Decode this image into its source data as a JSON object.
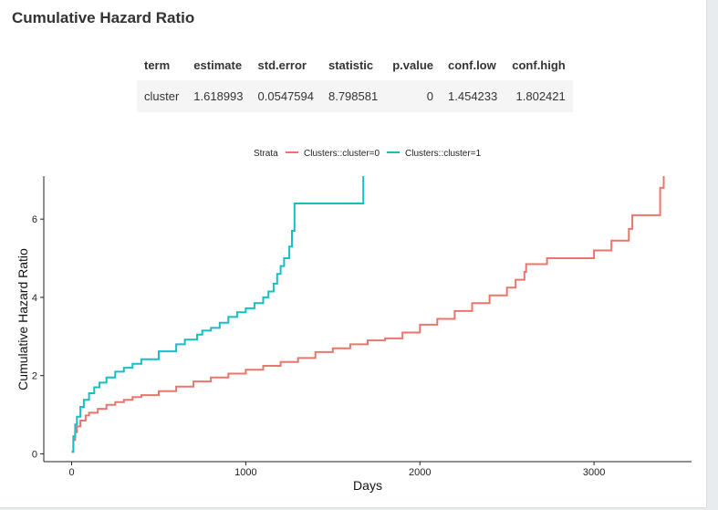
{
  "panel": {
    "title": "Cumulative Hazard Ratio"
  },
  "table": {
    "headers": [
      "term",
      "estimate",
      "std.error",
      "statistic",
      "p.value",
      "conf.low",
      "conf.high"
    ],
    "rows": [
      [
        "cluster",
        "1.618993",
        "0.0547594",
        "8.798581",
        "0",
        "1.454233",
        "1.802421"
      ]
    ]
  },
  "chart_data": {
    "type": "line",
    "step": true,
    "title": "",
    "xlabel": "Days",
    "ylabel": "Cumulative Hazard Ratio",
    "xlim": [
      -160,
      3560
    ],
    "ylim": [
      -0.2,
      7.1
    ],
    "xticks": [
      0,
      1000,
      2000,
      3000
    ],
    "yticks": [
      0,
      2,
      4,
      6
    ],
    "legend": {
      "title": "Strata",
      "position": "top"
    },
    "series": [
      {
        "name": "Clusters::cluster=0",
        "color": "#e8766d",
        "x": [
          0,
          10,
          20,
          30,
          50,
          80,
          100,
          150,
          200,
          250,
          300,
          350,
          400,
          500,
          600,
          700,
          800,
          900,
          1000,
          1100,
          1200,
          1300,
          1400,
          1500,
          1600,
          1700,
          1800,
          1900,
          2000,
          2100,
          2200,
          2300,
          2400,
          2500,
          2550,
          2600,
          2610,
          2620,
          2700,
          2730,
          2800,
          2900,
          3000,
          3100,
          3200,
          3220,
          3320,
          3380,
          3400
        ],
        "y": [
          0.05,
          0.35,
          0.55,
          0.7,
          0.85,
          0.98,
          1.05,
          1.15,
          1.25,
          1.32,
          1.38,
          1.45,
          1.5,
          1.6,
          1.72,
          1.85,
          1.95,
          2.05,
          2.15,
          2.25,
          2.35,
          2.45,
          2.6,
          2.7,
          2.8,
          2.9,
          2.95,
          3.1,
          3.3,
          3.45,
          3.65,
          3.85,
          4.05,
          4.25,
          4.45,
          4.65,
          4.85,
          4.85,
          4.85,
          5.0,
          5.0,
          5.0,
          5.2,
          5.45,
          5.75,
          6.1,
          6.1,
          6.8,
          7.2
        ]
      },
      {
        "name": "Clusters::cluster=1",
        "color": "#18bec4",
        "x": [
          0,
          10,
          20,
          30,
          50,
          70,
          100,
          130,
          160,
          200,
          250,
          300,
          350,
          400,
          500,
          600,
          650,
          720,
          750,
          800,
          850,
          900,
          950,
          1000,
          1050,
          1100,
          1130,
          1160,
          1180,
          1200,
          1220,
          1250,
          1265,
          1280,
          1600,
          1670,
          1675
        ],
        "y": [
          0.05,
          0.45,
          0.75,
          0.95,
          1.2,
          1.38,
          1.55,
          1.7,
          1.82,
          1.95,
          2.1,
          2.2,
          2.3,
          2.42,
          2.62,
          2.8,
          2.92,
          3.05,
          3.15,
          3.22,
          3.35,
          3.5,
          3.62,
          3.72,
          3.85,
          4.0,
          4.15,
          4.35,
          4.6,
          4.8,
          5.0,
          5.3,
          5.7,
          6.4,
          6.4,
          6.4,
          7.2
        ]
      }
    ]
  }
}
